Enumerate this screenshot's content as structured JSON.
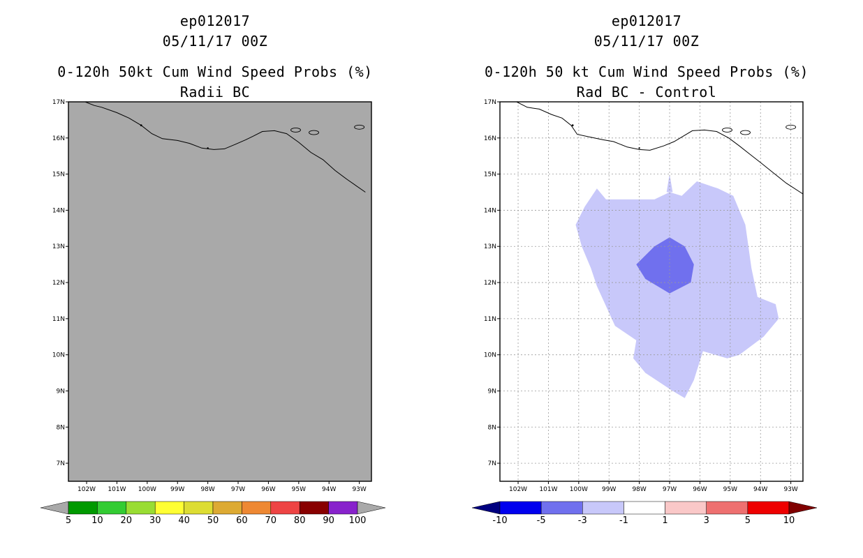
{
  "panels": [
    {
      "storm": "ep012017",
      "date": "05/11/17 00Z",
      "title": "0-120h 50kt Cum Wind Speed Probs (%)",
      "subtitle": "Radii BC"
    },
    {
      "storm": "ep012017",
      "date": "05/11/17 00Z",
      "title": "0-120h 50 kt Cum Wind Speed Probs (%)",
      "subtitle": "Rad BC - Control"
    }
  ],
  "chart_data": [
    {
      "type": "heatmap",
      "title": "0-120h 50kt Cum Wind Speed Probs (%) - Radii BC",
      "xlim": [
        -102.6,
        -92.6
      ],
      "ylim": [
        6.5,
        17
      ],
      "x_ticks": [
        -102,
        -101,
        -100,
        -99,
        -98,
        -97,
        -96,
        -95,
        -94,
        -93
      ],
      "x_tick_labels": [
        "102W",
        "101W",
        "100W",
        "99W",
        "98W",
        "97W",
        "96W",
        "95W",
        "94W",
        "93W"
      ],
      "y_ticks": [
        7,
        8,
        9,
        10,
        11,
        12,
        13,
        14,
        15,
        16,
        17
      ],
      "y_tick_labels": [
        "7N",
        "8N",
        "9N",
        "10N",
        "11N",
        "12N",
        "13N",
        "14N",
        "15N",
        "16N",
        "17N"
      ],
      "grid": false,
      "background_color": "#a9a9a9",
      "field_note": "uniform gray (no values above 5%)",
      "colorbar": {
        "labels": [
          "5",
          "10",
          "20",
          "30",
          "40",
          "50",
          "60",
          "70",
          "80",
          "90",
          "100"
        ],
        "colors": [
          "#a9a9a9",
          "#009900",
          "#33cc33",
          "#99dd33",
          "#ffff33",
          "#dddd33",
          "#ddaa33",
          "#ee8833",
          "#ee4444",
          "#880000",
          "#8822cc",
          "#a9a9a9"
        ]
      }
    },
    {
      "type": "heatmap",
      "title": "0-120h 50 kt Cum Wind Speed Probs (%) - Rad BC - Control",
      "xlim": [
        -102.6,
        -92.6
      ],
      "ylim": [
        6.5,
        17
      ],
      "x_ticks": [
        -102,
        -101,
        -100,
        -99,
        -98,
        -97,
        -96,
        -95,
        -94,
        -93
      ],
      "x_tick_labels": [
        "102W",
        "101W",
        "100W",
        "99W",
        "98W",
        "97W",
        "96W",
        "95W",
        "94W",
        "93W"
      ],
      "y_ticks": [
        7,
        8,
        9,
        10,
        11,
        12,
        13,
        14,
        15,
        16,
        17
      ],
      "y_tick_labels": [
        "7N",
        "8N",
        "9N",
        "10N",
        "11N",
        "12N",
        "13N",
        "14N",
        "15N",
        "16N",
        "17N"
      ],
      "grid": true,
      "contours": [
        {
          "range": [
            -3,
            -1
          ],
          "color": "#c8c8fa",
          "polygon": [
            [
              -99.4,
              14.6
            ],
            [
              -99.1,
              14.3
            ],
            [
              -98.4,
              14.3
            ],
            [
              -97.5,
              14.3
            ],
            [
              -97.0,
              14.5
            ],
            [
              -96.6,
              14.4
            ],
            [
              -96.1,
              14.8
            ],
            [
              -95.4,
              14.6
            ],
            [
              -94.9,
              14.4
            ],
            [
              -94.5,
              13.6
            ],
            [
              -94.4,
              13.0
            ],
            [
              -94.3,
              12.4
            ],
            [
              -94.1,
              11.6
            ],
            [
              -93.5,
              11.4
            ],
            [
              -93.4,
              11.0
            ],
            [
              -93.9,
              10.5
            ],
            [
              -94.7,
              10.0
            ],
            [
              -95.1,
              9.9
            ],
            [
              -95.9,
              10.1
            ],
            [
              -96.2,
              9.3
            ],
            [
              -96.5,
              8.8
            ],
            [
              -96.9,
              9.0
            ],
            [
              -97.8,
              9.5
            ],
            [
              -98.2,
              9.9
            ],
            [
              -98.1,
              10.4
            ],
            [
              -98.8,
              10.8
            ],
            [
              -99.4,
              11.9
            ],
            [
              -99.6,
              12.4
            ],
            [
              -99.9,
              13.0
            ],
            [
              -100.1,
              13.6
            ],
            [
              -99.8,
              14.1
            ]
          ]
        },
        {
          "range": [
            -3,
            -1
          ],
          "color": "#c8c8fa",
          "polygon": [
            [
              -97.1,
              14.5
            ],
            [
              -97.0,
              15.0
            ],
            [
              -96.9,
              14.5
            ]
          ]
        },
        {
          "range": [
            -5,
            -3
          ],
          "color": "#7070ee",
          "polygon": [
            [
              -97.5,
              13.0
            ],
            [
              -97.0,
              13.25
            ],
            [
              -96.5,
              13.0
            ],
            [
              -96.2,
              12.5
            ],
            [
              -96.3,
              12.0
            ],
            [
              -97.0,
              11.7
            ],
            [
              -97.8,
              12.1
            ],
            [
              -98.1,
              12.5
            ]
          ]
        }
      ],
      "colorbar": {
        "labels": [
          "-10",
          "-5",
          "-3",
          "-1",
          "1",
          "3",
          "5",
          "10"
        ],
        "colors": [
          "#000080",
          "#0000ee",
          "#7070ee",
          "#c8c8fa",
          "#ffffff",
          "#fac8c8",
          "#ee7070",
          "#ee0000",
          "#800000"
        ]
      }
    }
  ]
}
